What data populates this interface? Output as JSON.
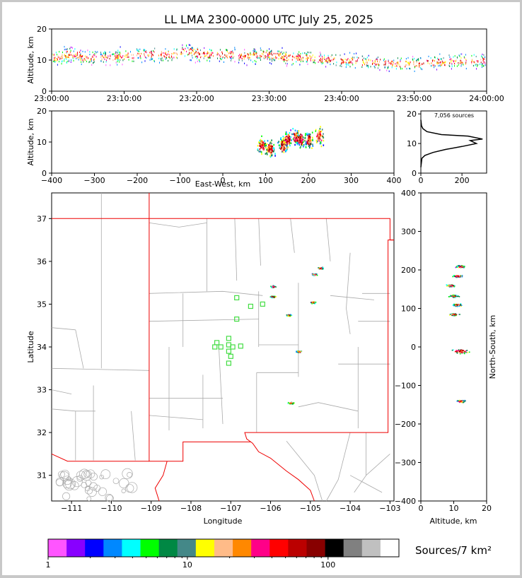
{
  "title": "LL LMA 2300-0000 UTC July 25, 2025",
  "chart_data": [
    {
      "name": "time-height",
      "type": "scatter",
      "ylabel": "Altitude, km",
      "ylim": [
        0,
        20
      ],
      "yticks": [
        0,
        10,
        20
      ],
      "xlim_minutes": [
        0,
        60
      ],
      "xtick_labels": [
        "23:00:00",
        "23:10:00",
        "23:20:00",
        "23:30:00",
        "23:40:00",
        "23:50:00",
        "24:00:00"
      ],
      "density_profile_minutes_vs_km": [
        [
          1,
          11
        ],
        [
          3,
          12
        ],
        [
          5,
          11
        ],
        [
          8,
          11
        ],
        [
          10,
          11.5
        ],
        [
          13,
          12
        ],
        [
          16,
          12
        ],
        [
          19,
          13
        ],
        [
          21,
          12
        ],
        [
          24,
          12
        ],
        [
          27,
          11.5
        ],
        [
          29,
          12
        ],
        [
          31,
          11.5
        ],
        [
          33,
          11
        ],
        [
          35,
          11
        ],
        [
          38,
          10.5
        ],
        [
          41,
          10
        ],
        [
          44,
          9.5
        ],
        [
          47,
          9
        ],
        [
          50,
          9
        ],
        [
          53,
          9.5
        ],
        [
          56,
          10
        ],
        [
          59,
          10
        ]
      ]
    },
    {
      "name": "east-west-altitude",
      "type": "scatter",
      "xlabel": "East-West, km",
      "ylabel": "Altitude, km",
      "xlim": [
        -400,
        400
      ],
      "ylim": [
        0,
        20
      ],
      "xticks": [
        -400,
        -300,
        -200,
        -100,
        0,
        100,
        200,
        300,
        400
      ],
      "yticks": [
        0,
        10,
        20
      ],
      "clusters_km": [
        [
          90,
          9
        ],
        [
          110,
          8
        ],
        [
          140,
          9
        ],
        [
          150,
          11
        ],
        [
          170,
          12
        ],
        [
          180,
          11
        ],
        [
          200,
          11
        ],
        [
          225,
          12
        ]
      ]
    },
    {
      "name": "altitude-histogram",
      "type": "line",
      "annotation": "7,056 sources",
      "xlim": [
        0,
        320
      ],
      "ylim": [
        0,
        21
      ],
      "xticks": [
        0,
        200
      ],
      "yticks": [
        0,
        10,
        20
      ],
      "profile_count_vs_km": [
        [
          0,
          2
        ],
        [
          5,
          5
        ],
        [
          20,
          6
        ],
        [
          60,
          7
        ],
        [
          120,
          8
        ],
        [
          200,
          9
        ],
        [
          270,
          10
        ],
        [
          240,
          11
        ],
        [
          300,
          11.5
        ],
        [
          230,
          12.5
        ],
        [
          100,
          13
        ],
        [
          30,
          14
        ],
        [
          10,
          15
        ],
        [
          3,
          16
        ],
        [
          0,
          18
        ]
      ]
    },
    {
      "name": "plan-view",
      "type": "scatter",
      "xlabel": "Longitude",
      "ylabel": "Latitude",
      "xlim": [
        -111.5,
        -102.9
      ],
      "ylim": [
        30.4,
        37.6
      ],
      "xticks": [
        -111,
        -110,
        -109,
        -108,
        -107,
        -106,
        -105,
        -104,
        -103
      ],
      "yticks": [
        31,
        32,
        33,
        34,
        35,
        36,
        37
      ],
      "source_clusters_lonlat": [
        [
          -104.75,
          35.85
        ],
        [
          -104.9,
          35.7
        ],
        [
          -104.95,
          35.05
        ],
        [
          -105.95,
          35.42
        ],
        [
          -105.95,
          35.18
        ],
        [
          -105.55,
          34.75
        ],
        [
          -105.3,
          33.9
        ],
        [
          -105.5,
          32.7
        ]
      ],
      "stations_lonlat": [
        [
          -106.85,
          35.15
        ],
        [
          -106.5,
          34.95
        ],
        [
          -106.2,
          35.0
        ],
        [
          -106.85,
          34.65
        ],
        [
          -107.05,
          34.2
        ],
        [
          -107.05,
          34.05
        ],
        [
          -107.35,
          34.1
        ],
        [
          -107.4,
          34.0
        ],
        [
          -107.25,
          34.0
        ],
        [
          -106.95,
          34.0
        ],
        [
          -106.75,
          34.02
        ],
        [
          -107.05,
          33.9
        ],
        [
          -107.0,
          33.78
        ],
        [
          -107.05,
          33.62
        ]
      ]
    },
    {
      "name": "altitude-north-south",
      "type": "scatter",
      "xlabel": "Altitude, km",
      "ylabel": "North-South, km",
      "xlim": [
        0,
        20
      ],
      "ylim": [
        -400,
        400
      ],
      "xticks": [
        0,
        10,
        20
      ],
      "yticks": [
        -400,
        -300,
        -200,
        -100,
        0,
        100,
        200,
        300,
        400
      ],
      "clusters_km": [
        [
          12,
          210
        ],
        [
          11,
          185
        ],
        [
          9,
          160
        ],
        [
          10,
          133
        ],
        [
          11,
          110
        ],
        [
          10,
          85
        ],
        [
          12,
          -10
        ],
        [
          12,
          -140
        ]
      ]
    }
  ],
  "colorbar": {
    "label": "Sources/7 km²",
    "tick_labels": [
      "1",
      "10",
      "100"
    ],
    "colors": [
      "#ff55ff",
      "#8800ff",
      "#0000ff",
      "#0088ff",
      "#00ffff",
      "#00ff00",
      "#008844",
      "#448888",
      "#ffff00",
      "#ffbb88",
      "#ff8800",
      "#ff0088",
      "#ff0000",
      "#bb0000",
      "#880000",
      "#000000",
      "#808080",
      "#c0c0c0",
      "#ffffff"
    ]
  }
}
